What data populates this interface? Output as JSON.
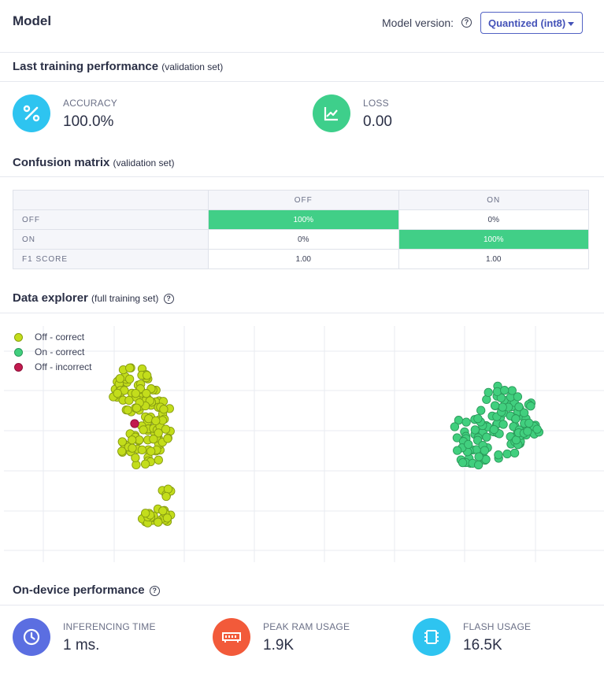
{
  "header": {
    "title": "Model",
    "version_label": "Model version:",
    "version_value": "Quantized (int8)"
  },
  "training": {
    "title": "Last training performance",
    "subtitle": "(validation set)",
    "accuracy": {
      "label": "ACCURACY",
      "value": "100.0%",
      "icon": "percent-icon",
      "color": "#2ec4f0"
    },
    "loss": {
      "label": "LOSS",
      "value": "0.00",
      "icon": "chart-line-icon",
      "color": "#3ecf8b"
    }
  },
  "confusion": {
    "title": "Confusion matrix",
    "subtitle": "(validation set)",
    "columns": [
      "OFF",
      "ON"
    ],
    "rows": [
      {
        "label": "OFF",
        "cells": [
          "100%",
          "0%"
        ]
      },
      {
        "label": "ON",
        "cells": [
          "0%",
          "100%"
        ]
      },
      {
        "label": "F1 SCORE",
        "cells": [
          "1.00",
          "1.00"
        ]
      }
    ],
    "highlight_color": "#41cf87"
  },
  "explorer": {
    "title": "Data explorer",
    "subtitle": "(full training set)",
    "legend": [
      {
        "label": "Off - correct",
        "color": "#c3dd1b"
      },
      {
        "label": "On - correct",
        "color": "#41cf7e"
      },
      {
        "label": "Off - incorrect",
        "color": "#c21a4f"
      }
    ]
  },
  "ondevice": {
    "title": "On-device performance",
    "inferencing": {
      "label": "INFERENCING TIME",
      "value": "1 ms.",
      "icon": "clock-icon",
      "color": "#5b6ee1"
    },
    "ram": {
      "label": "PEAK RAM USAGE",
      "value": "1.9K",
      "icon": "memory-icon",
      "color": "#f25a3a"
    },
    "flash": {
      "label": "FLASH USAGE",
      "value": "16.5K",
      "icon": "chip-icon",
      "color": "#2ec4f0"
    }
  }
}
